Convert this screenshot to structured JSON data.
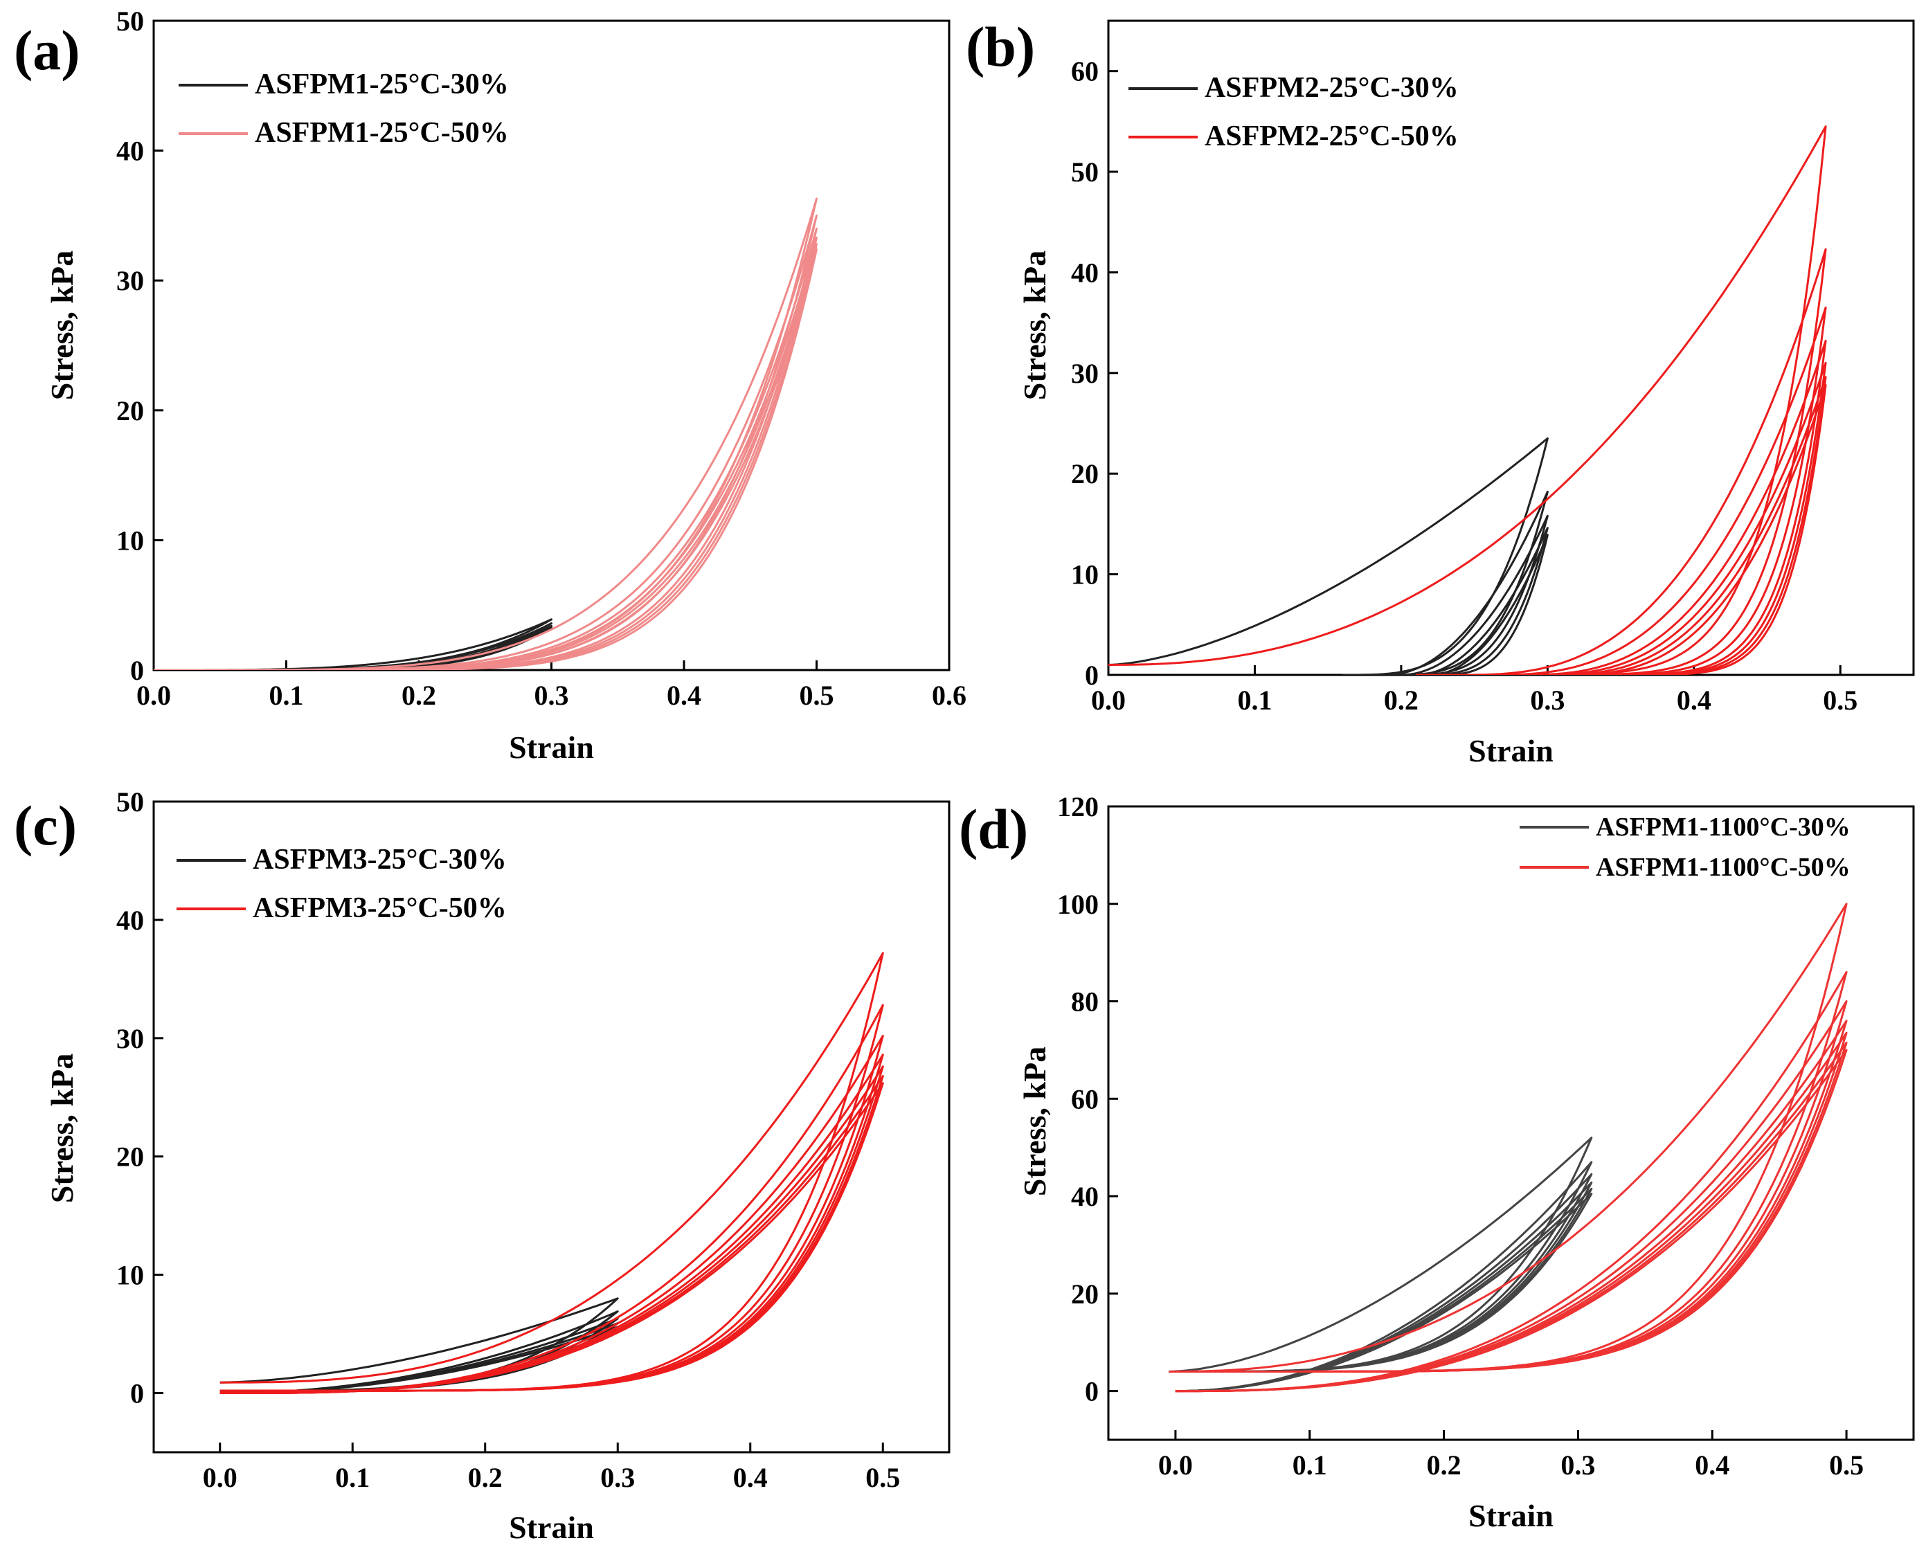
{
  "figure": {
    "colors": {
      "black_series": "#222222",
      "red_series": "#ee1c1c",
      "pale_red_series": "#f08a8a",
      "axis": "#000000",
      "background": "#ffffff"
    }
  },
  "chart_data": [
    {
      "panel": "(a)",
      "type": "line",
      "title": "",
      "xlabel": "Strain",
      "ylabel": "Stress, kPa",
      "xlim": [
        0.0,
        0.6
      ],
      "ylim": [
        0,
        50
      ],
      "xticks": [
        "0.0",
        "0.1",
        "0.2",
        "0.3",
        "0.4",
        "0.5",
        "0.6"
      ],
      "yticks": [
        "0",
        "10",
        "20",
        "30",
        "40",
        "50"
      ],
      "legend_position": "top-left",
      "series": [
        {
          "name": "ASFPM1-25°C-30%",
          "color": "#222222",
          "max_strain": 0.3,
          "peak_stresses": [
            3.9,
            3.6,
            3.4,
            3.3
          ],
          "unload_start_strain": [
            0.0,
            0.03,
            0.05,
            0.06
          ],
          "load_exponent": 3.6,
          "unload_exponent": 4.6
        },
        {
          "name": "ASFPM1-25°C-50%",
          "color": "#f08a8a",
          "max_strain": 0.5,
          "peak_stresses": [
            36.3,
            35.0,
            34.0,
            33.3,
            32.8,
            32.4
          ],
          "unload_start_strain": [
            0.0,
            0.02,
            0.04,
            0.05,
            0.06,
            0.07
          ],
          "load_exponent": 4.8,
          "unload_exponent": 6.2
        }
      ]
    },
    {
      "panel": "(b)",
      "type": "line",
      "title": "",
      "xlabel": "Strain",
      "ylabel": "Stress, kPa",
      "xlim": [
        0.0,
        0.55
      ],
      "ylim": [
        0,
        65
      ],
      "xticks": [
        "0.0",
        "0.1",
        "0.2",
        "0.3",
        "0.4",
        "0.5"
      ],
      "yticks": [
        "0",
        "10",
        "20",
        "30",
        "40",
        "50",
        "60"
      ],
      "legend_position": "top-left",
      "series": [
        {
          "name": "ASFPM2-25°C-30%",
          "color": "#222222",
          "max_strain": 0.3,
          "peak_stresses": [
            23.5,
            18.2,
            15.8,
            14.6,
            13.9
          ],
          "unload_start_strain": [
            0.16,
            0.19,
            0.2,
            0.21,
            0.22
          ],
          "load_exponent": 1.6,
          "unload_exponent": 3.5
        },
        {
          "name": "ASFPM2-25°C-50%",
          "color": "#ee1c1c",
          "max_strain": 0.49,
          "peak_stresses": [
            54.5,
            42.3,
            36.5,
            33.2,
            31.0,
            29.6,
            28.8
          ],
          "unload_start_strain": [
            0.21,
            0.24,
            0.26,
            0.28,
            0.29,
            0.3,
            0.31
          ],
          "load_exponent": 2.4,
          "unload_exponent": 7.5
        }
      ]
    },
    {
      "panel": "(c)",
      "type": "line",
      "title": "",
      "xlabel": "Strain",
      "ylabel": "Stress, kPa",
      "xlim": [
        -0.05,
        0.55
      ],
      "ylim": [
        -5,
        50
      ],
      "xticks": [
        "0.0",
        "0.1",
        "0.2",
        "0.3",
        "0.4",
        "0.5"
      ],
      "yticks": [
        "0",
        "10",
        "20",
        "30",
        "40",
        "50"
      ],
      "legend_position": "top-left",
      "series": [
        {
          "name": "ASFPM3-25°C-30%",
          "color": "#222222",
          "max_strain": 0.3,
          "peak_stresses": [
            8.0,
            6.9,
            6.3,
            5.9,
            5.6
          ],
          "unload_start_strain": [
            0.0,
            0.0,
            0.0,
            0.0,
            0.0
          ],
          "load_exponent": 1.7,
          "unload_exponent": 4.0
        },
        {
          "name": "ASFPM3-25°C-50%",
          "color": "#ee1c1c",
          "max_strain": 0.5,
          "peak_stresses": [
            37.2,
            32.8,
            30.2,
            28.6,
            27.6,
            26.8,
            26.2
          ],
          "unload_start_strain": [
            0.0,
            0.0,
            0.0,
            0.0,
            0.0,
            0.0,
            0.0
          ],
          "load_exponent": 2.8,
          "unload_exponent": 7.0
        }
      ]
    },
    {
      "panel": "(d)",
      "type": "line",
      "title": "",
      "xlabel": "Strain",
      "ylabel": "Stress, kPa",
      "xlim": [
        -0.05,
        0.55
      ],
      "ylim": [
        -10,
        120
      ],
      "xticks": [
        "0.0",
        "0.1",
        "0.2",
        "0.3",
        "0.4",
        "0.5"
      ],
      "yticks": [
        "0",
        "20",
        "40",
        "60",
        "80",
        "100",
        "120"
      ],
      "legend_position": "top-right",
      "series": [
        {
          "name": "ASFPM1-1100°C-30%",
          "color": "#444444",
          "max_strain": 0.31,
          "peak_stresses": [
            52.0,
            47.0,
            44.5,
            42.8,
            41.5,
            40.5
          ],
          "unload_start_strain": [
            0.0,
            0.0,
            0.0,
            0.0,
            0.0,
            0.0
          ],
          "load_exponent": 1.7,
          "unload_exponent": 4.2
        },
        {
          "name": "ASFPM1-1100°C-50%",
          "color": "#ee3333",
          "max_strain": 0.5,
          "peak_stresses": [
            100.0,
            86.0,
            80.0,
            76.0,
            73.5,
            71.5,
            70.0
          ],
          "unload_start_strain": [
            0.0,
            0.0,
            0.0,
            0.0,
            0.0,
            0.0,
            0.0
          ],
          "load_exponent": 2.4,
          "unload_exponent": 6.5
        }
      ]
    }
  ]
}
